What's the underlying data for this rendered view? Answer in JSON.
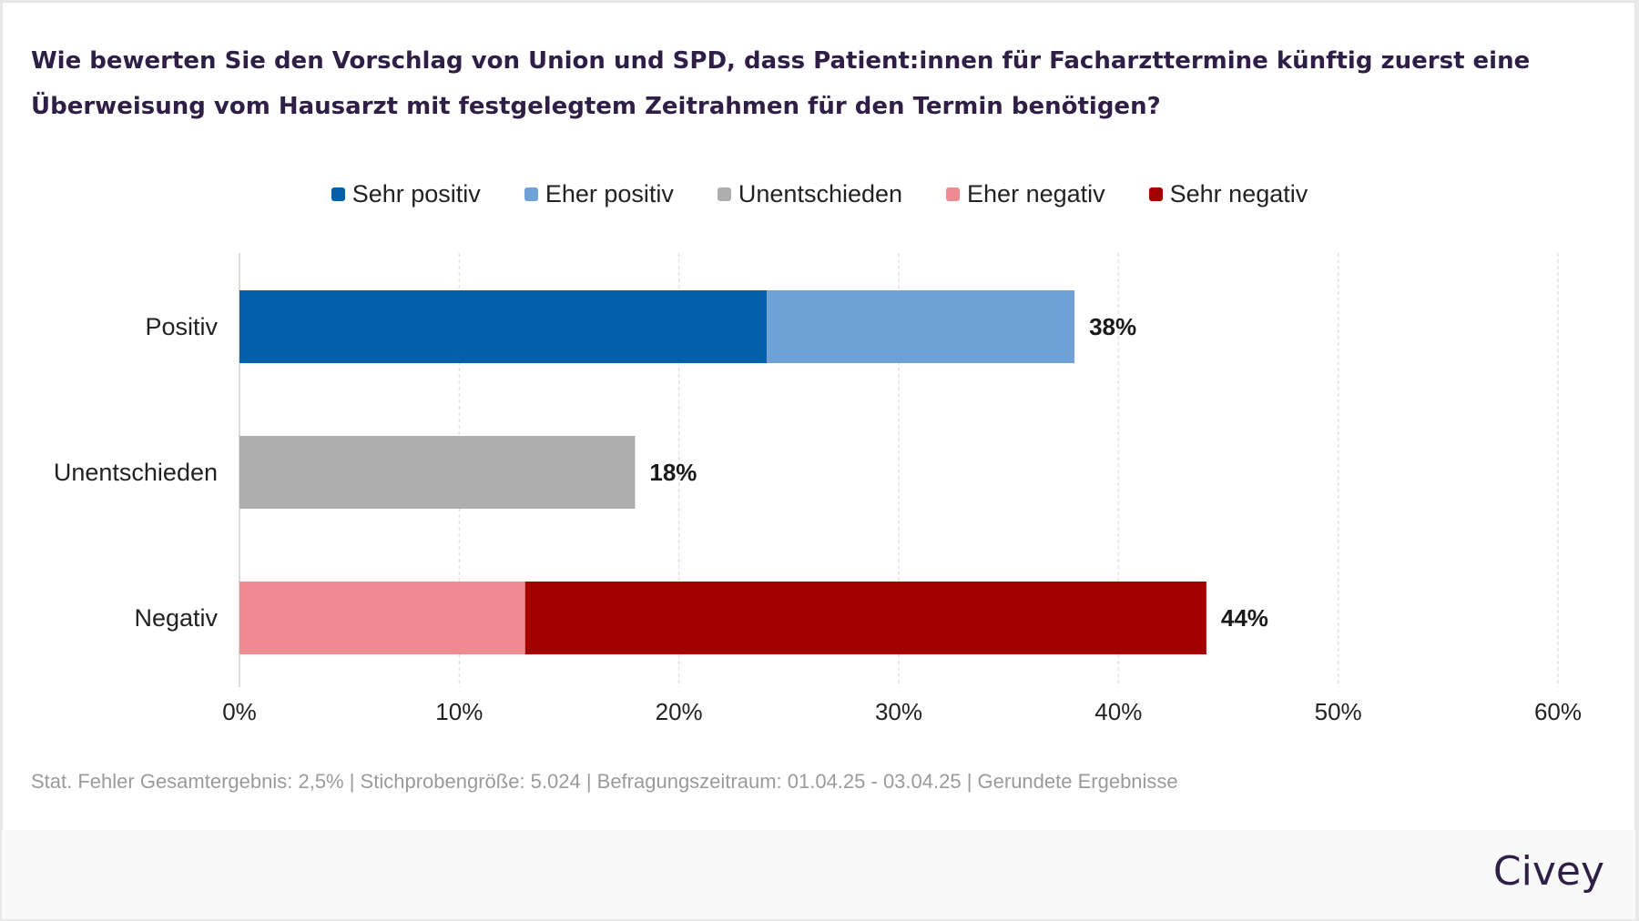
{
  "title": "Wie bewerten Sie den Vorschlag von Union und SPD, dass Patient:innen für Facharzttermine künftig zuerst eine Überweisung vom Hausarzt mit festgelegtem Zeitrahmen für den Termin benötigen?",
  "footnote": "Stat. Fehler Gesamtergebnis: 2,5% | Stichprobengröße: 5.024 | Befragungszeitraum: 01.04.25 - 03.04.25 | Gerundete Ergebnisse",
  "brand": "Civey",
  "chart_data": {
    "type": "bar",
    "orientation": "horizontal",
    "stacked": true,
    "title": "Wie bewerten Sie den Vorschlag von Union und SPD, dass Patient:innen für Facharzttermine künftig zuerst eine Überweisung vom Hausarzt mit festgelegtem Zeitrahmen für den Termin benötigen?",
    "xlabel": "",
    "ylabel": "",
    "categories": [
      "Positiv",
      "Unentschieden",
      "Negativ"
    ],
    "series": [
      {
        "name": "Sehr positiv",
        "color": "#0260a8",
        "values": [
          24,
          0,
          0
        ]
      },
      {
        "name": "Eher positiv",
        "color": "#6fa1d6",
        "values": [
          14,
          0,
          0
        ]
      },
      {
        "name": "Unentschieden",
        "color": "#adadad",
        "values": [
          0,
          18,
          0
        ]
      },
      {
        "name": "Eher negativ",
        "color": "#f08a92",
        "values": [
          0,
          0,
          13
        ]
      },
      {
        "name": "Sehr negativ",
        "color": "#a50000",
        "values": [
          0,
          0,
          31
        ]
      }
    ],
    "totals": [
      "38%",
      "18%",
      "44%"
    ],
    "xlim": [
      0,
      60
    ],
    "xticks": [
      0,
      10,
      20,
      30,
      40,
      50,
      60
    ],
    "xtick_labels": [
      "0%",
      "10%",
      "20%",
      "30%",
      "40%",
      "50%",
      "60%"
    ],
    "grid": true,
    "legend_position": "top-center"
  }
}
